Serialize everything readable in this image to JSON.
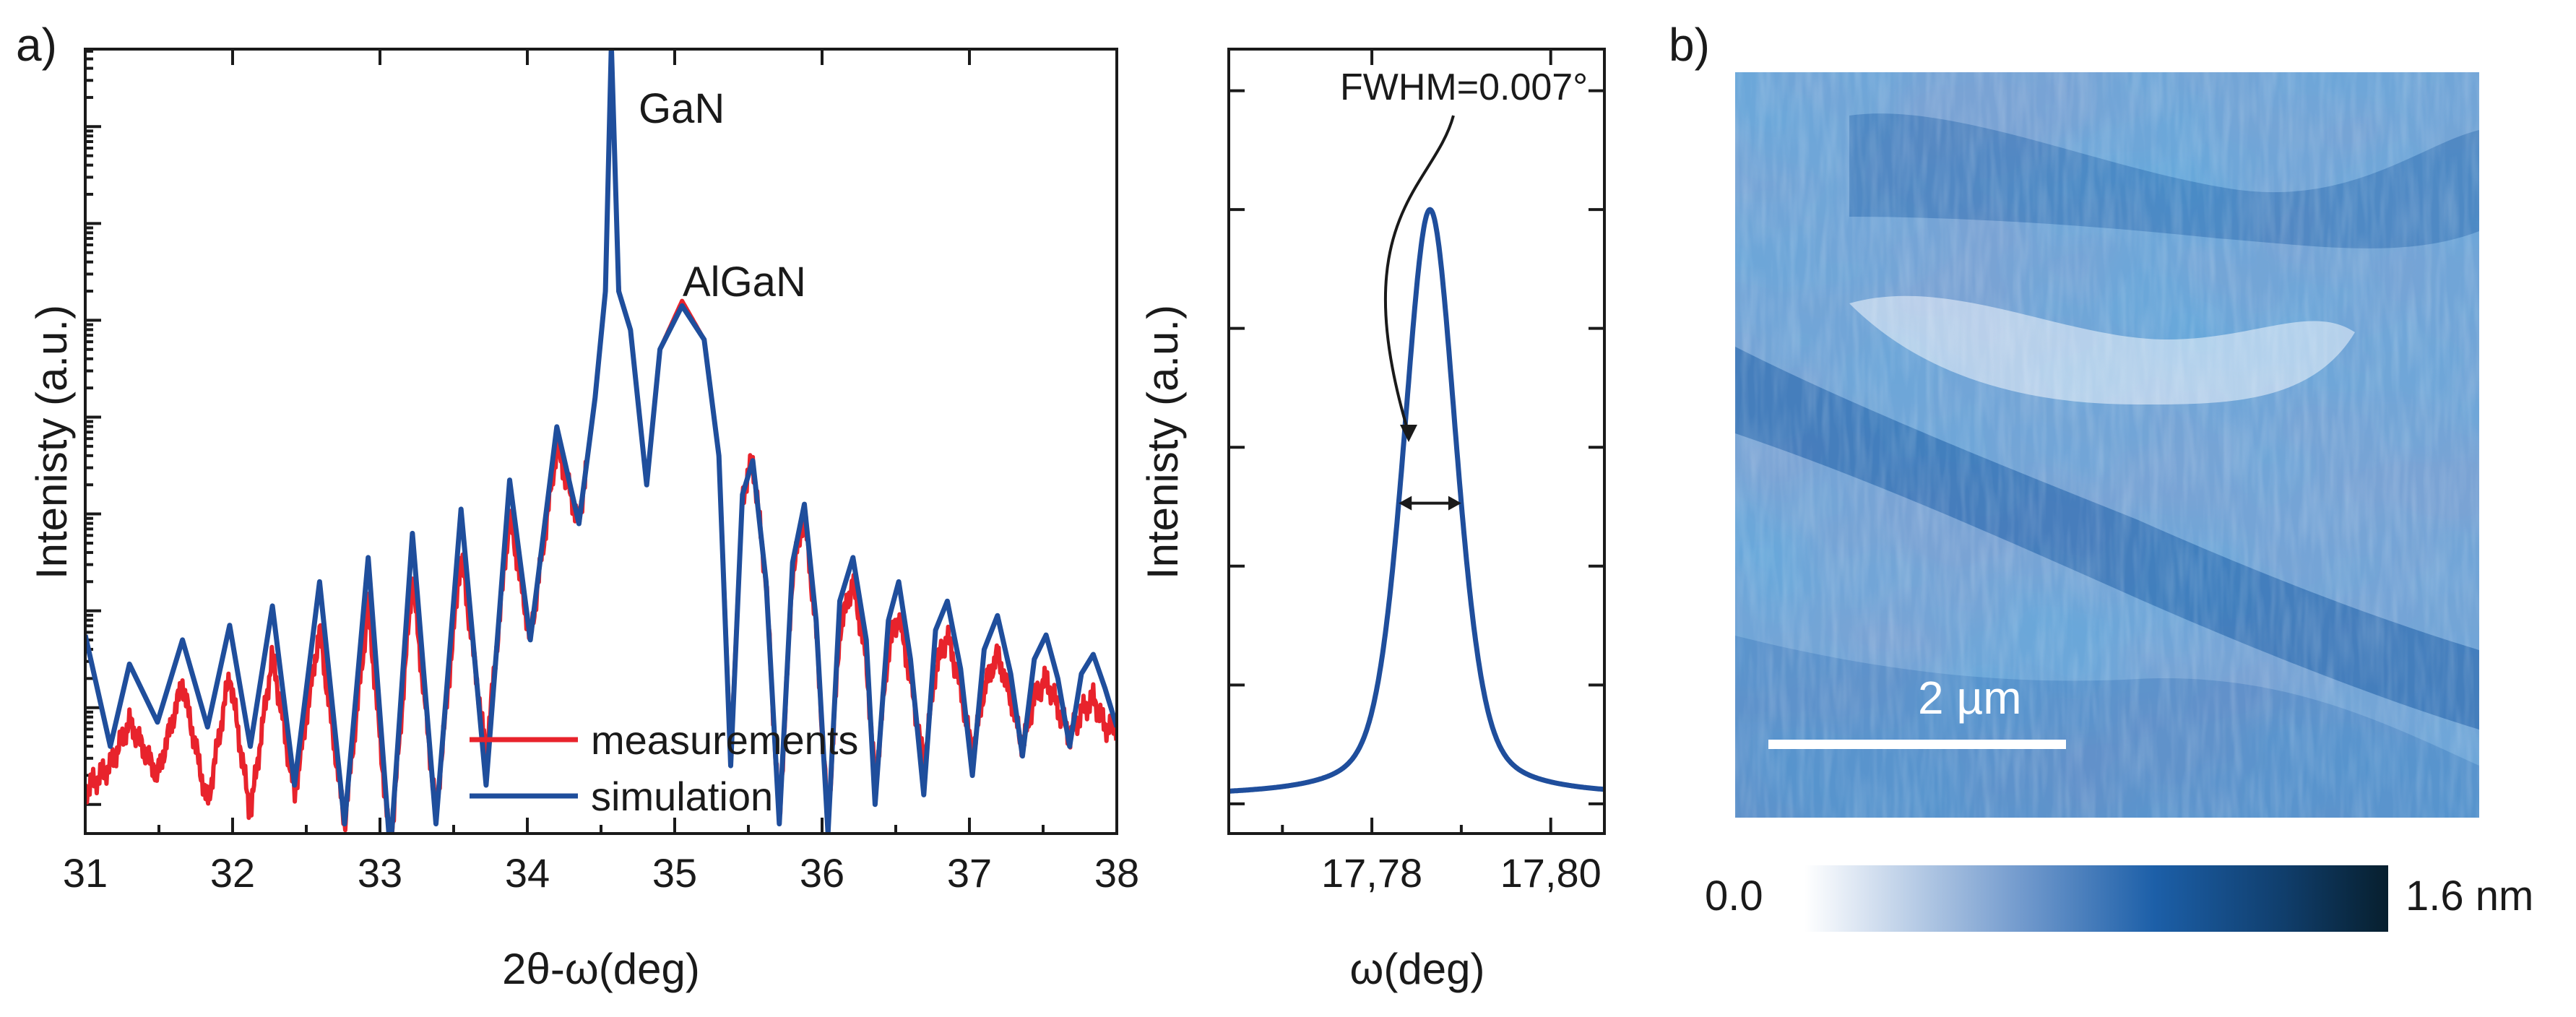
{
  "panel_labels": {
    "a": "a)",
    "b": "b)"
  },
  "colors": {
    "measurement": "#e8232c",
    "simulation": "#1f4e9c",
    "text": "#1a1a1a"
  },
  "chart_data": [
    {
      "type": "line",
      "title": "",
      "xlabel": "2θ-ω(deg)",
      "ylabel": "Intenisty (a.u.)",
      "xlim": [
        31,
        38
      ],
      "ylim_log": [
        -0.3,
        7.8
      ],
      "x_ticks": [
        "31",
        "32",
        "33",
        "34",
        "35",
        "36",
        "37",
        "38"
      ],
      "y_scale": "log, no tick labels",
      "annotations": [
        {
          "text": "GaN",
          "x": 34.57,
          "y_log": 7.4
        },
        {
          "text": "AlGaN",
          "x": 35.07,
          "y_log": 5.3
        }
      ],
      "legend": {
        "position": "bottom-center",
        "entries": [
          "measurements",
          "simulation"
        ]
      },
      "series": [
        {
          "name": "simulation",
          "fringe_minima_x": [
            31.17,
            31.49,
            31.83,
            32.12,
            32.42,
            32.76,
            33.07,
            33.38,
            33.72,
            34.02,
            34.35,
            34.81,
            35.38,
            35.71,
            36.04,
            36.36,
            36.69,
            37.02,
            37.36,
            37.68
          ],
          "points": [
            [
              31.0,
              1.75
            ],
            [
              31.17,
              0.6
            ],
            [
              31.3,
              1.45
            ],
            [
              31.49,
              0.85
            ],
            [
              31.66,
              1.7
            ],
            [
              31.83,
              0.8
            ],
            [
              31.98,
              1.85
            ],
            [
              32.12,
              0.6
            ],
            [
              32.27,
              2.05
            ],
            [
              32.42,
              0.2
            ],
            [
              32.59,
              2.3
            ],
            [
              32.76,
              -0.2
            ],
            [
              32.92,
              2.55
            ],
            [
              33.07,
              -0.5
            ],
            [
              33.22,
              2.8
            ],
            [
              33.38,
              -0.2
            ],
            [
              33.55,
              3.05
            ],
            [
              33.72,
              0.2
            ],
            [
              33.88,
              3.35
            ],
            [
              34.02,
              1.7
            ],
            [
              34.2,
              3.9
            ],
            [
              34.35,
              2.9
            ],
            [
              34.46,
              4.2
            ],
            [
              34.53,
              5.3
            ],
            [
              34.57,
              7.85
            ],
            [
              34.62,
              5.3
            ],
            [
              34.7,
              4.9
            ],
            [
              34.81,
              3.3
            ],
            [
              34.9,
              4.7
            ],
            [
              35.05,
              5.15
            ],
            [
              35.2,
              4.8
            ],
            [
              35.3,
              3.6
            ],
            [
              35.38,
              0.4
            ],
            [
              35.46,
              3.2
            ],
            [
              35.53,
              3.55
            ],
            [
              35.62,
              2.3
            ],
            [
              35.71,
              -0.2
            ],
            [
              35.8,
              2.5
            ],
            [
              35.88,
              3.1
            ],
            [
              35.96,
              1.9
            ],
            [
              36.04,
              -0.3
            ],
            [
              36.12,
              2.1
            ],
            [
              36.21,
              2.55
            ],
            [
              36.3,
              1.7
            ],
            [
              36.36,
              0.0
            ],
            [
              36.45,
              1.9
            ],
            [
              36.52,
              2.3
            ],
            [
              36.6,
              1.5
            ],
            [
              36.69,
              0.1
            ],
            [
              36.77,
              1.8
            ],
            [
              36.85,
              2.1
            ],
            [
              36.94,
              1.4
            ],
            [
              37.02,
              0.3
            ],
            [
              37.1,
              1.6
            ],
            [
              37.19,
              1.95
            ],
            [
              37.28,
              1.35
            ],
            [
              37.36,
              0.5
            ],
            [
              37.44,
              1.5
            ],
            [
              37.52,
              1.75
            ],
            [
              37.6,
              1.3
            ],
            [
              37.68,
              0.6
            ],
            [
              37.76,
              1.35
            ],
            [
              37.84,
              1.55
            ],
            [
              37.92,
              1.2
            ],
            [
              38.0,
              0.8
            ]
          ]
        },
        {
          "name": "measurements",
          "points": [
            [
              31.0,
              0.15
            ],
            [
              31.17,
              0.4
            ],
            [
              31.3,
              0.85
            ],
            [
              31.49,
              0.3
            ],
            [
              31.66,
              1.25
            ],
            [
              31.83,
              0.0
            ],
            [
              31.98,
              1.35
            ],
            [
              32.12,
              -0.1
            ],
            [
              32.27,
              1.55
            ],
            [
              32.42,
              0.1
            ],
            [
              32.59,
              1.8
            ],
            [
              32.76,
              -0.2
            ],
            [
              32.92,
              2.05
            ],
            [
              33.07,
              -0.5
            ],
            [
              33.22,
              2.35
            ],
            [
              33.38,
              -0.1
            ],
            [
              33.55,
              2.6
            ],
            [
              33.72,
              0.5
            ],
            [
              33.88,
              3.0
            ],
            [
              34.02,
              1.7
            ],
            [
              34.2,
              3.7
            ],
            [
              34.35,
              2.9
            ],
            [
              34.46,
              4.2
            ],
            [
              34.53,
              5.3
            ],
            [
              34.57,
              7.85
            ],
            [
              34.62,
              5.3
            ],
            [
              34.7,
              4.9
            ],
            [
              34.81,
              3.3
            ],
            [
              34.9,
              4.7
            ],
            [
              35.05,
              5.2
            ],
            [
              35.2,
              4.8
            ],
            [
              35.3,
              3.6
            ],
            [
              35.38,
              0.5
            ],
            [
              35.46,
              3.2
            ],
            [
              35.53,
              3.55
            ],
            [
              35.62,
              2.3
            ],
            [
              35.71,
              -0.2
            ],
            [
              35.8,
              2.4
            ],
            [
              35.88,
              3.0
            ],
            [
              35.96,
              1.8
            ],
            [
              36.04,
              -0.2
            ],
            [
              36.12,
              1.8
            ],
            [
              36.21,
              2.3
            ],
            [
              36.3,
              1.5
            ],
            [
              36.36,
              0.2
            ],
            [
              36.45,
              1.6
            ],
            [
              36.52,
              1.95
            ],
            [
              36.6,
              1.3
            ],
            [
              36.69,
              0.4
            ],
            [
              36.77,
              1.4
            ],
            [
              36.85,
              1.75
            ],
            [
              36.94,
              1.2
            ],
            [
              37.02,
              0.5
            ],
            [
              37.1,
              1.2
            ],
            [
              37.19,
              1.55
            ],
            [
              37.28,
              1.1
            ],
            [
              37.36,
              0.6
            ],
            [
              37.44,
              1.1
            ],
            [
              37.52,
              1.3
            ],
            [
              37.6,
              1.0
            ],
            [
              37.68,
              0.7
            ],
            [
              37.76,
              0.95
            ],
            [
              37.84,
              1.1
            ],
            [
              37.92,
              0.8
            ],
            [
              38.0,
              0.8
            ]
          ]
        }
      ]
    },
    {
      "type": "line",
      "title": "",
      "xlabel": "ω(deg)",
      "ylabel": "Intenisty (a.u.)",
      "xlim": [
        17.764,
        17.806
      ],
      "ylim": [
        -0.05,
        1.27
      ],
      "x_ticks": [
        "17,78",
        "17,80"
      ],
      "x_tick_values": [
        17.78,
        17.8
      ],
      "y_scale": "linear, no tick labels",
      "annotation": {
        "text": "FWHM=0.007°",
        "fwhm_deg": 0.007
      },
      "series": [
        {
          "name": "simulation",
          "peak_center": 17.7865,
          "peak_height": 1.0,
          "baseline": 0.012,
          "shape": "pseudo-Voigt"
        }
      ]
    },
    {
      "type": "heatmap",
      "title": "",
      "scale_bar_label": "2 µm",
      "colorbar": {
        "min_label": "0.0",
        "max_label": "1.6 nm",
        "min": 0.0,
        "max": 1.6,
        "unit": "nm",
        "colors": [
          "#ffffff",
          "#1c5fa8",
          "#071f2e"
        ]
      }
    }
  ]
}
